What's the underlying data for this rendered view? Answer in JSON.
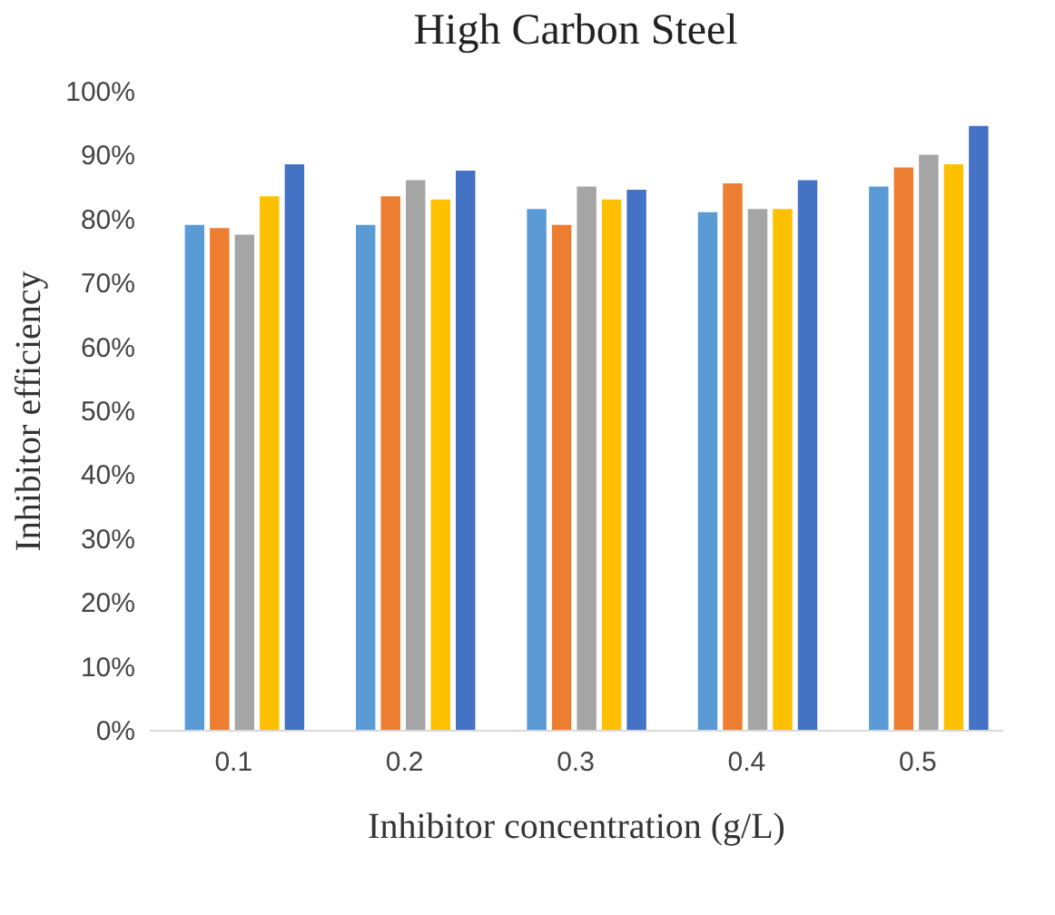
{
  "chart_data": {
    "type": "bar",
    "title": "High Carbon Steel",
    "xlabel": "Inhibitor concentration (g/L)",
    "ylabel": "Inhibitor efficiency",
    "categories": [
      "0.1",
      "0.2",
      "0.3",
      "0.4",
      "0.5"
    ],
    "series": [
      {
        "color": "#5b9bd5",
        "values": [
          79,
          79,
          81.5,
          81,
          85
        ]
      },
      {
        "color": "#ed7d31",
        "values": [
          78.5,
          83.5,
          79,
          85.5,
          88
        ]
      },
      {
        "color": "#a5a5a5",
        "values": [
          77.5,
          86,
          85,
          81.5,
          90
        ]
      },
      {
        "color": "#ffc000",
        "values": [
          83.5,
          83,
          83,
          81.5,
          88.5
        ]
      },
      {
        "color": "#4472c4",
        "values": [
          88.5,
          87.5,
          84.5,
          86,
          94.5
        ]
      }
    ],
    "ylim": [
      0,
      100
    ],
    "yticks": [
      {
        "value": 0,
        "label": "0%"
      },
      {
        "value": 10,
        "label": "10%"
      },
      {
        "value": 20,
        "label": "20%"
      },
      {
        "value": 30,
        "label": "30%"
      },
      {
        "value": 40,
        "label": "40%"
      },
      {
        "value": 50,
        "label": "50%"
      },
      {
        "value": 60,
        "label": "60%"
      },
      {
        "value": 70,
        "label": "70%"
      },
      {
        "value": 80,
        "label": "80%"
      },
      {
        "value": 90,
        "label": "90%"
      },
      {
        "value": 100,
        "label": "100%"
      }
    ],
    "grid": false,
    "legend": false
  }
}
